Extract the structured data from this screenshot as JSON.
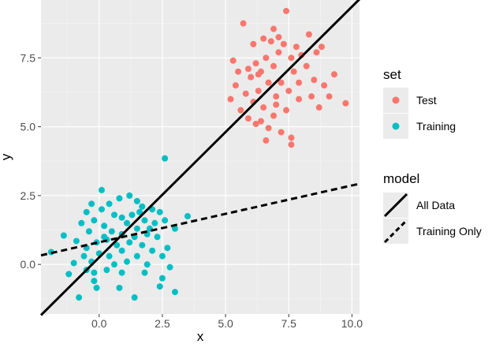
{
  "chart_data": {
    "type": "scatter",
    "xlabel": "x",
    "ylabel": "y",
    "xlim": [
      -2.3,
      10.3
    ],
    "ylim": [
      -1.8,
      9.6
    ],
    "xticks": [
      0.0,
      2.5,
      5.0,
      7.5,
      10.0
    ],
    "xtick_labels": [
      "0.0",
      "2.5",
      "5.0",
      "7.5",
      "10.0"
    ],
    "yticks": [
      0.0,
      2.5,
      5.0,
      7.5
    ],
    "ytick_labels": [
      "0.0",
      "2.5",
      "5.0",
      "7.5"
    ],
    "grid": true,
    "background": "#ebebeb",
    "series": [
      {
        "name": "Test",
        "color": "#f8766d",
        "points": [
          [
            5.7,
            8.75
          ],
          [
            7.4,
            9.2
          ],
          [
            8.3,
            8.35
          ],
          [
            6.9,
            8.55
          ],
          [
            6.1,
            8.0
          ],
          [
            6.5,
            8.2
          ],
          [
            6.8,
            8.1
          ],
          [
            7.3,
            8.0
          ],
          [
            7.1,
            7.7
          ],
          [
            7.6,
            7.5
          ],
          [
            8.0,
            7.6
          ],
          [
            8.6,
            7.7
          ],
          [
            8.8,
            7.9
          ],
          [
            6.6,
            7.5
          ],
          [
            6.2,
            7.3
          ],
          [
            5.9,
            7.1
          ],
          [
            5.3,
            7.4
          ],
          [
            5.5,
            7.0
          ],
          [
            5.4,
            6.5
          ],
          [
            6.0,
            6.8
          ],
          [
            6.4,
            7.0
          ],
          [
            6.9,
            7.2
          ],
          [
            7.7,
            7.0
          ],
          [
            8.2,
            7.2
          ],
          [
            8.5,
            6.7
          ],
          [
            8.9,
            6.5
          ],
          [
            9.3,
            6.9
          ],
          [
            7.9,
            6.6
          ],
          [
            7.2,
            6.6
          ],
          [
            6.7,
            6.6
          ],
          [
            6.3,
            6.3
          ],
          [
            5.8,
            6.2
          ],
          [
            5.2,
            6.0
          ],
          [
            5.6,
            5.6
          ],
          [
            6.1,
            5.9
          ],
          [
            6.5,
            5.7
          ],
          [
            7.0,
            6.1
          ],
          [
            7.5,
            6.3
          ],
          [
            7.9,
            6.0
          ],
          [
            8.4,
            6.1
          ],
          [
            8.7,
            5.7
          ],
          [
            7.4,
            5.6
          ],
          [
            6.9,
            5.4
          ],
          [
            6.4,
            5.2
          ],
          [
            6.2,
            5.1
          ],
          [
            6.7,
            4.95
          ],
          [
            7.2,
            4.8
          ],
          [
            7.6,
            4.6
          ],
          [
            6.6,
            4.5
          ],
          [
            7.6,
            4.35
          ],
          [
            9.75,
            5.85
          ],
          [
            9.1,
            6.1
          ],
          [
            5.9,
            5.3
          ],
          [
            7.0,
            5.8
          ],
          [
            6.3,
            6.9
          ],
          [
            7.8,
            7.9
          ],
          [
            7.1,
            8.25
          ]
        ]
      },
      {
        "name": "Training",
        "color": "#00bfc4",
        "points": [
          [
            2.6,
            3.85
          ],
          [
            0.1,
            2.7
          ],
          [
            0.8,
            2.4
          ],
          [
            1.2,
            2.5
          ],
          [
            1.5,
            2.3
          ],
          [
            0.4,
            2.2
          ],
          [
            -0.3,
            2.2
          ],
          [
            0.1,
            2.0
          ],
          [
            -0.5,
            1.9
          ],
          [
            2.4,
            1.9
          ],
          [
            1.7,
            2.1
          ],
          [
            2.1,
            2.0
          ],
          [
            3.5,
            1.75
          ],
          [
            0.6,
            1.8
          ],
          [
            0.9,
            1.7
          ],
          [
            1.3,
            1.8
          ],
          [
            1.8,
            1.6
          ],
          [
            2.2,
            1.5
          ],
          [
            -0.2,
            1.6
          ],
          [
            -0.7,
            1.5
          ],
          [
            0.2,
            1.4
          ],
          [
            1.1,
            1.5
          ],
          [
            1.5,
            1.3
          ],
          [
            2.6,
            1.6
          ],
          [
            3.0,
            1.3
          ],
          [
            -0.4,
            1.2
          ],
          [
            0.5,
            1.2
          ],
          [
            0.9,
            1.1
          ],
          [
            1.4,
            1.0
          ],
          [
            1.9,
            1.1
          ],
          [
            2.3,
            1.0
          ],
          [
            -1.4,
            1.05
          ],
          [
            -1.9,
            0.45
          ],
          [
            -0.9,
            0.85
          ],
          [
            -0.5,
            0.6
          ],
          [
            -0.1,
            0.8
          ],
          [
            0.3,
            0.9
          ],
          [
            0.7,
            0.7
          ],
          [
            1.2,
            0.8
          ],
          [
            1.7,
            0.7
          ],
          [
            2.1,
            0.5
          ],
          [
            2.7,
            0.6
          ],
          [
            0.0,
            0.4
          ],
          [
            0.4,
            0.3
          ],
          [
            0.9,
            0.5
          ],
          [
            1.5,
            0.3
          ],
          [
            2.5,
            0.3
          ],
          [
            -1.0,
            0.05
          ],
          [
            -0.3,
            0.1
          ],
          [
            0.6,
            0.0
          ],
          [
            1.1,
            0.1
          ],
          [
            1.9,
            0.0
          ],
          [
            2.8,
            -0.1
          ],
          [
            -1.2,
            -0.35
          ],
          [
            -0.2,
            -0.3
          ],
          [
            0.3,
            -0.2
          ],
          [
            -0.2,
            -0.6
          ],
          [
            0.9,
            -0.3
          ],
          [
            1.8,
            -0.3
          ],
          [
            2.5,
            -0.5
          ],
          [
            -0.1,
            -0.85
          ],
          [
            0.8,
            -0.85
          ],
          [
            2.4,
            -0.8
          ],
          [
            3.0,
            -1.0
          ],
          [
            -0.8,
            -1.2
          ],
          [
            1.4,
            -1.2
          ],
          [
            -0.5,
            -0.2
          ],
          [
            1.6,
            1.9
          ],
          [
            0.2,
            1.0
          ],
          [
            2.0,
            1.3
          ],
          [
            -0.6,
            0.3
          ]
        ]
      }
    ],
    "lines": [
      {
        "name": "All Data",
        "style": "solid",
        "color": "#000000",
        "x": [
          -2.3,
          10.3
        ],
        "y": [
          -1.84,
          9.63
        ]
      },
      {
        "name": "Training Only",
        "style": "dashed",
        "color": "#000000",
        "x": [
          -2.3,
          10.3
        ],
        "y": [
          0.33,
          2.93
        ]
      }
    ],
    "legend": {
      "position": "right",
      "set_title": "set",
      "set_entries": [
        {
          "label": "Test",
          "color": "#f8766d"
        },
        {
          "label": "Training",
          "color": "#00bfc4"
        }
      ],
      "model_title": "model",
      "model_entries": [
        {
          "label": "All Data",
          "style": "solid"
        },
        {
          "label": "Training Only",
          "style": "dashed"
        }
      ]
    }
  }
}
